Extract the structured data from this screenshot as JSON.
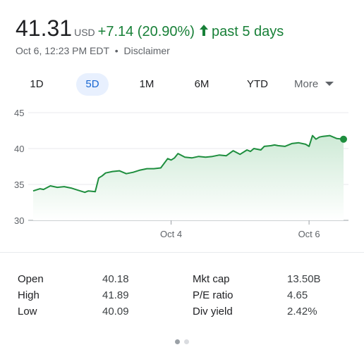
{
  "quote": {
    "price": "41.31",
    "currency": "USD",
    "change": "+7.14 (20.90%)",
    "period": "past 5 days",
    "timestamp": "Oct 6, 12:23 PM EDT",
    "separator": "•",
    "disclaimer": "Disclaimer",
    "up_color": "#188038"
  },
  "range_tabs": {
    "items": [
      {
        "label": "1D",
        "active": false
      },
      {
        "label": "5D",
        "active": true
      },
      {
        "label": "1M",
        "active": false
      },
      {
        "label": "6M",
        "active": false
      },
      {
        "label": "YTD",
        "active": false
      }
    ],
    "more_label": "More"
  },
  "chart_data": {
    "type": "area",
    "y_ticks": [
      "45",
      "40",
      "35",
      "30"
    ],
    "ylim": [
      30,
      45
    ],
    "x_ticks": [
      {
        "label": "Oct 4",
        "x": 2.0
      },
      {
        "label": "Oct 6",
        "x": 4.0
      }
    ],
    "xlim": [
      0,
      4.5
    ],
    "grid": true,
    "line_color": "#1e8e3e",
    "fill_color": "#e6f4ea",
    "x": [
      0,
      0.1,
      0.15,
      0.25,
      0.35,
      0.45,
      0.55,
      0.65,
      0.75,
      0.8,
      0.9,
      0.95,
      1.0,
      1.05,
      1.15,
      1.25,
      1.35,
      1.45,
      1.55,
      1.65,
      1.75,
      1.85,
      1.95,
      2.0,
      2.05,
      2.1,
      2.2,
      2.3,
      2.4,
      2.5,
      2.6,
      2.7,
      2.8,
      2.9,
      3.0,
      3.1,
      3.15,
      3.2,
      3.3,
      3.35,
      3.45,
      3.5,
      3.55,
      3.65,
      3.75,
      3.85,
      3.95,
      4.0,
      4.05,
      4.1,
      4.15,
      4.2,
      4.3,
      4.4,
      4.5
    ],
    "y": [
      34.1,
      34.4,
      34.3,
      34.8,
      34.6,
      34.7,
      34.5,
      34.2,
      33.9,
      34.1,
      34.0,
      35.9,
      36.2,
      36.6,
      36.8,
      36.9,
      36.5,
      36.7,
      37.0,
      37.2,
      37.2,
      37.3,
      38.6,
      38.4,
      38.7,
      39.3,
      38.8,
      38.7,
      38.9,
      38.8,
      38.9,
      39.1,
      39.0,
      39.7,
      39.2,
      39.8,
      39.6,
      40.0,
      39.8,
      40.3,
      40.4,
      40.5,
      40.4,
      40.3,
      40.7,
      40.8,
      40.6,
      40.3,
      41.8,
      41.3,
      41.6,
      41.7,
      41.8,
      41.4,
      41.3
    ]
  },
  "stats": {
    "left": [
      {
        "label": "Open",
        "value": "40.18"
      },
      {
        "label": "High",
        "value": "41.89"
      },
      {
        "label": "Low",
        "value": "40.09"
      }
    ],
    "right": [
      {
        "label": "Mkt cap",
        "value": "13.50B"
      },
      {
        "label": "P/E ratio",
        "value": "4.65"
      },
      {
        "label": "Div yield",
        "value": "2.42%"
      }
    ]
  },
  "pager": {
    "count": 2,
    "active_index": 0
  }
}
